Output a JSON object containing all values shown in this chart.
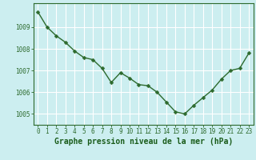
{
  "x": [
    0,
    1,
    2,
    3,
    4,
    5,
    6,
    7,
    8,
    9,
    10,
    11,
    12,
    13,
    14,
    15,
    16,
    17,
    18,
    19,
    20,
    21,
    22,
    23
  ],
  "y": [
    1009.7,
    1009.0,
    1008.6,
    1008.3,
    1007.9,
    1007.6,
    1007.5,
    1007.1,
    1006.45,
    1006.9,
    1006.65,
    1006.35,
    1006.3,
    1006.0,
    1005.55,
    1005.1,
    1005.0,
    1005.4,
    1005.75,
    1006.1,
    1006.6,
    1007.0,
    1007.1,
    1007.8
  ],
  "line_color": "#2d6a2d",
  "marker": "D",
  "marker_size": 2.5,
  "line_width": 1.0,
  "bg_color": "#cceef0",
  "grid_color": "#ffffff",
  "xlabel": "Graphe pression niveau de la mer (hPa)",
  "xlabel_color": "#1a5c1a",
  "xlabel_fontsize": 7,
  "ylabel_ticks": [
    1005,
    1006,
    1007,
    1008,
    1009
  ],
  "ylim": [
    1004.5,
    1010.1
  ],
  "xlim": [
    -0.5,
    23.5
  ],
  "tick_color": "#2d6a2d",
  "tick_fontsize": 5.5,
  "spine_color": "#2d6a2d"
}
